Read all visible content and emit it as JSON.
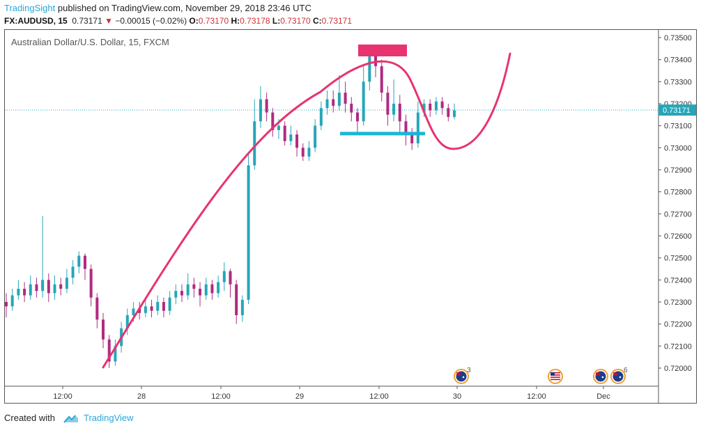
{
  "header": {
    "author": "TradingSight",
    "published": "published on TradingView.com, November 29, 2018 23:46 UTC",
    "symbol": "FX:AUDUSD, 15",
    "last": "0.73171",
    "change": "−0.00015 (−0.02%)",
    "o_label": "O:",
    "o": "0.73170",
    "h_label": "H:",
    "h": "0.73178",
    "l_label": "L:",
    "l": "0.73170",
    "c_label": "C:",
    "c": "0.73171"
  },
  "footer": {
    "created_with": "Created with",
    "brand": "TradingView"
  },
  "chart_data": {
    "type": "candlestick",
    "title": "Australian Dollar/U.S. Dollar, 15, FXCM",
    "ylim": [
      0.7195,
      0.7355
    ],
    "y_ticks": [
      "0.72000",
      "0.72100",
      "0.72200",
      "0.72300",
      "0.72400",
      "0.72500",
      "0.72600",
      "0.72700",
      "0.72800",
      "0.72900",
      "0.73000",
      "0.73100",
      "0.73200",
      "0.73300",
      "0.73400",
      "0.73500"
    ],
    "x_ticks": [
      "12:00",
      "28",
      "12:00",
      "29",
      "12:00",
      "30",
      "12:00",
      "Dec"
    ],
    "last_price": 0.73171,
    "colors": {
      "up": "#26a6b8",
      "down": "#b02a80",
      "curve": "#e8336f",
      "support": "#1ab6d6",
      "resistance": "#e8336f"
    },
    "event_badges": [
      {
        "flag": "au",
        "count": "3"
      },
      {
        "flag": "us",
        "count": ""
      },
      {
        "flag": "au",
        "count": ""
      },
      {
        "flag": "au",
        "count": "6"
      }
    ],
    "candles": [
      {
        "o": 0.723,
        "c": 0.7228,
        "h": 0.7234,
        "l": 0.7223
      },
      {
        "o": 0.7228,
        "c": 0.7233,
        "h": 0.7236,
        "l": 0.7226
      },
      {
        "o": 0.7233,
        "c": 0.7236,
        "h": 0.724,
        "l": 0.7231
      },
      {
        "o": 0.7236,
        "c": 0.7233,
        "h": 0.7239,
        "l": 0.723
      },
      {
        "o": 0.7233,
        "c": 0.7238,
        "h": 0.7242,
        "l": 0.7231
      },
      {
        "o": 0.7238,
        "c": 0.7235,
        "h": 0.7241,
        "l": 0.7232
      },
      {
        "o": 0.7235,
        "c": 0.724,
        "h": 0.7269,
        "l": 0.7232
      },
      {
        "o": 0.724,
        "c": 0.7234,
        "h": 0.7243,
        "l": 0.723
      },
      {
        "o": 0.7234,
        "c": 0.7238,
        "h": 0.7242,
        "l": 0.7231
      },
      {
        "o": 0.7238,
        "c": 0.7236,
        "h": 0.7241,
        "l": 0.7233
      },
      {
        "o": 0.7236,
        "c": 0.7241,
        "h": 0.7245,
        "l": 0.7234
      },
      {
        "o": 0.7241,
        "c": 0.7246,
        "h": 0.7249,
        "l": 0.7238
      },
      {
        "o": 0.7246,
        "c": 0.7251,
        "h": 0.7253,
        "l": 0.7243
      },
      {
        "o": 0.7251,
        "c": 0.7245,
        "h": 0.7252,
        "l": 0.724
      },
      {
        "o": 0.7245,
        "c": 0.7232,
        "h": 0.7247,
        "l": 0.7228
      },
      {
        "o": 0.7232,
        "c": 0.7222,
        "h": 0.7234,
        "l": 0.7218
      },
      {
        "o": 0.7222,
        "c": 0.7213,
        "h": 0.7225,
        "l": 0.7209
      },
      {
        "o": 0.7213,
        "c": 0.7203,
        "h": 0.7215,
        "l": 0.72
      },
      {
        "o": 0.7203,
        "c": 0.721,
        "h": 0.7213,
        "l": 0.7201
      },
      {
        "o": 0.721,
        "c": 0.7218,
        "h": 0.7221,
        "l": 0.7207
      },
      {
        "o": 0.7218,
        "c": 0.7224,
        "h": 0.7227,
        "l": 0.7215
      },
      {
        "o": 0.7224,
        "c": 0.7227,
        "h": 0.723,
        "l": 0.7221
      },
      {
        "o": 0.7227,
        "c": 0.7225,
        "h": 0.723,
        "l": 0.7222
      },
      {
        "o": 0.7225,
        "c": 0.7228,
        "h": 0.7231,
        "l": 0.7223
      },
      {
        "o": 0.7228,
        "c": 0.7226,
        "h": 0.7231,
        "l": 0.7223
      },
      {
        "o": 0.7226,
        "c": 0.723,
        "h": 0.7233,
        "l": 0.7224
      },
      {
        "o": 0.723,
        "c": 0.7226,
        "h": 0.7232,
        "l": 0.7223
      },
      {
        "o": 0.7226,
        "c": 0.7232,
        "h": 0.7235,
        "l": 0.7224
      },
      {
        "o": 0.7232,
        "c": 0.7235,
        "h": 0.7238,
        "l": 0.7229
      },
      {
        "o": 0.7235,
        "c": 0.7233,
        "h": 0.7238,
        "l": 0.723
      },
      {
        "o": 0.7233,
        "c": 0.7238,
        "h": 0.7243,
        "l": 0.7231
      },
      {
        "o": 0.7238,
        "c": 0.7236,
        "h": 0.7241,
        "l": 0.7232
      },
      {
        "o": 0.7236,
        "c": 0.7233,
        "h": 0.7239,
        "l": 0.7228
      },
      {
        "o": 0.7233,
        "c": 0.7238,
        "h": 0.7241,
        "l": 0.7231
      },
      {
        "o": 0.7238,
        "c": 0.7234,
        "h": 0.724,
        "l": 0.7231
      },
      {
        "o": 0.7234,
        "c": 0.7239,
        "h": 0.7242,
        "l": 0.7232
      },
      {
        "o": 0.7239,
        "c": 0.7244,
        "h": 0.7248,
        "l": 0.7235
      },
      {
        "o": 0.7244,
        "c": 0.7238,
        "h": 0.7245,
        "l": 0.7232
      },
      {
        "o": 0.7238,
        "c": 0.7224,
        "h": 0.724,
        "l": 0.722
      },
      {
        "o": 0.7224,
        "c": 0.7231,
        "h": 0.7233,
        "l": 0.7221
      },
      {
        "o": 0.7231,
        "c": 0.7292,
        "h": 0.7297,
        "l": 0.7229
      },
      {
        "o": 0.7292,
        "c": 0.7312,
        "h": 0.7322,
        "l": 0.729
      },
      {
        "o": 0.7312,
        "c": 0.7322,
        "h": 0.7328,
        "l": 0.7309
      },
      {
        "o": 0.7322,
        "c": 0.7316,
        "h": 0.7325,
        "l": 0.7312
      },
      {
        "o": 0.7316,
        "c": 0.7308,
        "h": 0.7318,
        "l": 0.7305
      },
      {
        "o": 0.7308,
        "c": 0.731,
        "h": 0.7313,
        "l": 0.7304
      },
      {
        "o": 0.731,
        "c": 0.7303,
        "h": 0.7312,
        "l": 0.7301
      },
      {
        "o": 0.7303,
        "c": 0.7306,
        "h": 0.731,
        "l": 0.7301
      },
      {
        "o": 0.7306,
        "c": 0.73,
        "h": 0.7308,
        "l": 0.7296
      },
      {
        "o": 0.73,
        "c": 0.7296,
        "h": 0.7302,
        "l": 0.7294
      },
      {
        "o": 0.7296,
        "c": 0.73,
        "h": 0.7303,
        "l": 0.7294
      },
      {
        "o": 0.73,
        "c": 0.731,
        "h": 0.7313,
        "l": 0.7298
      },
      {
        "o": 0.731,
        "c": 0.7318,
        "h": 0.7321,
        "l": 0.7308
      },
      {
        "o": 0.7318,
        "c": 0.7322,
        "h": 0.7326,
        "l": 0.7315
      },
      {
        "o": 0.7322,
        "c": 0.7319,
        "h": 0.7326,
        "l": 0.7316
      },
      {
        "o": 0.7319,
        "c": 0.7325,
        "h": 0.7333,
        "l": 0.7317
      },
      {
        "o": 0.7325,
        "c": 0.732,
        "h": 0.733,
        "l": 0.7316
      },
      {
        "o": 0.732,
        "c": 0.7316,
        "h": 0.7323,
        "l": 0.7312
      },
      {
        "o": 0.7316,
        "c": 0.7312,
        "h": 0.7318,
        "l": 0.7306
      },
      {
        "o": 0.7312,
        "c": 0.733,
        "h": 0.7338,
        "l": 0.731
      },
      {
        "o": 0.733,
        "c": 0.7342,
        "h": 0.7344,
        "l": 0.7326
      },
      {
        "o": 0.7342,
        "c": 0.7337,
        "h": 0.7343,
        "l": 0.7332
      },
      {
        "o": 0.7337,
        "c": 0.7325,
        "h": 0.734,
        "l": 0.7321
      },
      {
        "o": 0.7325,
        "c": 0.7315,
        "h": 0.7328,
        "l": 0.731
      },
      {
        "o": 0.7315,
        "c": 0.732,
        "h": 0.7331,
        "l": 0.7312
      },
      {
        "o": 0.732,
        "c": 0.7312,
        "h": 0.7324,
        "l": 0.7306
      },
      {
        "o": 0.7312,
        "c": 0.7306,
        "h": 0.7315,
        "l": 0.7301
      },
      {
        "o": 0.7306,
        "c": 0.7302,
        "h": 0.7309,
        "l": 0.7299
      },
      {
        "o": 0.7302,
        "c": 0.7316,
        "h": 0.7321,
        "l": 0.73
      },
      {
        "o": 0.7316,
        "c": 0.732,
        "h": 0.7322,
        "l": 0.7314
      },
      {
        "o": 0.732,
        "c": 0.7317,
        "h": 0.7322,
        "l": 0.7314
      },
      {
        "o": 0.7317,
        "c": 0.7321,
        "h": 0.7323,
        "l": 0.7315
      },
      {
        "o": 0.7321,
        "c": 0.7318,
        "h": 0.7323,
        "l": 0.7315
      },
      {
        "o": 0.7318,
        "c": 0.7314,
        "h": 0.732,
        "l": 0.7312
      },
      {
        "o": 0.7314,
        "c": 0.7317,
        "h": 0.732,
        "l": 0.7313
      }
    ]
  }
}
